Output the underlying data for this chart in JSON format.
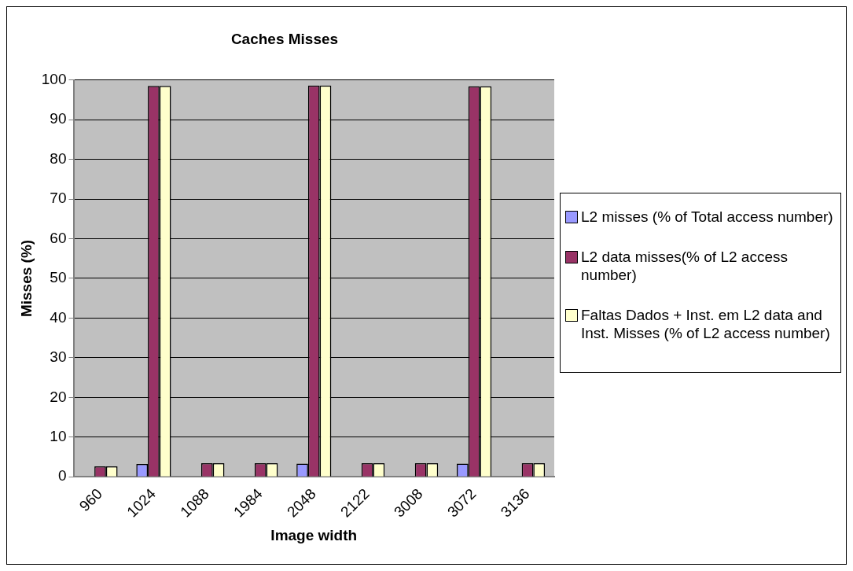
{
  "chart_data": {
    "type": "bar",
    "title": "Caches Misses",
    "xlabel": "Image width",
    "ylabel": "Misses (%)",
    "categories": [
      "960",
      "1024",
      "1088",
      "1984",
      "2048",
      "2122",
      "3008",
      "3072",
      "3136"
    ],
    "series": [
      {
        "name": "L2 misses (% of Total access number)",
        "color": "#9999ff",
        "values": [
          0,
          3.2,
          0,
          0,
          3.3,
          0,
          0,
          3.3,
          0
        ]
      },
      {
        "name": "L2 data misses(% of L2 access number)",
        "color": "#993366",
        "values": [
          2.6,
          98.5,
          3.4,
          3.4,
          98.6,
          3.4,
          3.4,
          98.4,
          3.4
        ]
      },
      {
        "name": "Faltas Dados + Inst. em L2 data and Inst. Misses (% of L2 access number)",
        "color": "#ffffcc",
        "values": [
          2.6,
          98.5,
          3.4,
          3.4,
          98.6,
          3.4,
          3.4,
          98.4,
          3.4
        ]
      }
    ],
    "ylim": [
      0,
      100
    ],
    "yticks": [
      0,
      10,
      20,
      30,
      40,
      50,
      60,
      70,
      80,
      90,
      100
    ],
    "grid": "y",
    "legend": "right"
  }
}
